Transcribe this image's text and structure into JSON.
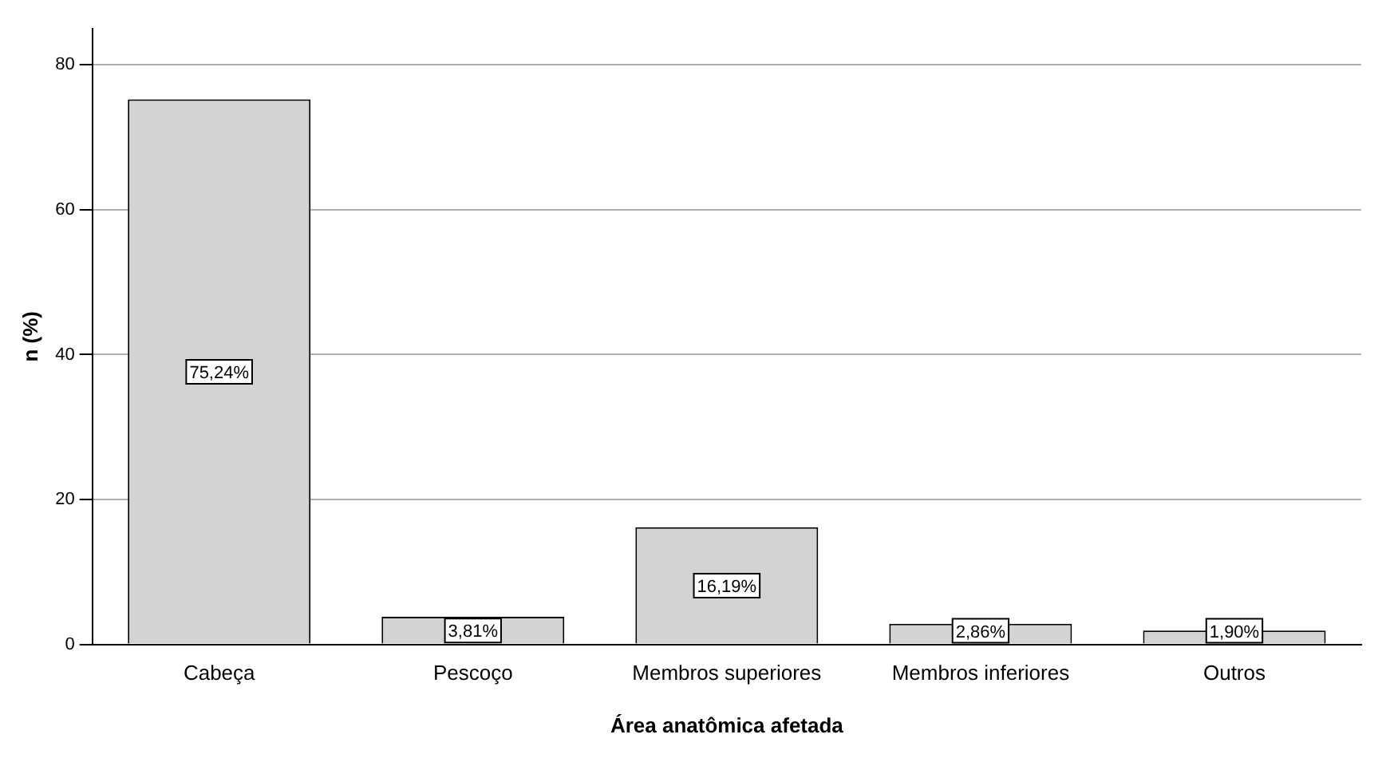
{
  "chart_data": {
    "type": "bar",
    "xlabel": "Área anatômica afetada",
    "ylabel": "n (%)",
    "categories": [
      "Cabeça",
      "Pescoço",
      "Membros superiores",
      "Membros inferiores",
      "Outros"
    ],
    "values": [
      75.24,
      3.81,
      16.19,
      2.86,
      1.9
    ],
    "value_labels": [
      "75,24%",
      "3,81%",
      "16,19%",
      "2,86%",
      "1,90%"
    ],
    "color": "#d3d3d3",
    "ylim": [
      0,
      85
    ],
    "yticks": [
      0,
      20,
      40,
      60,
      80
    ],
    "grid": "y",
    "legend": false
  }
}
